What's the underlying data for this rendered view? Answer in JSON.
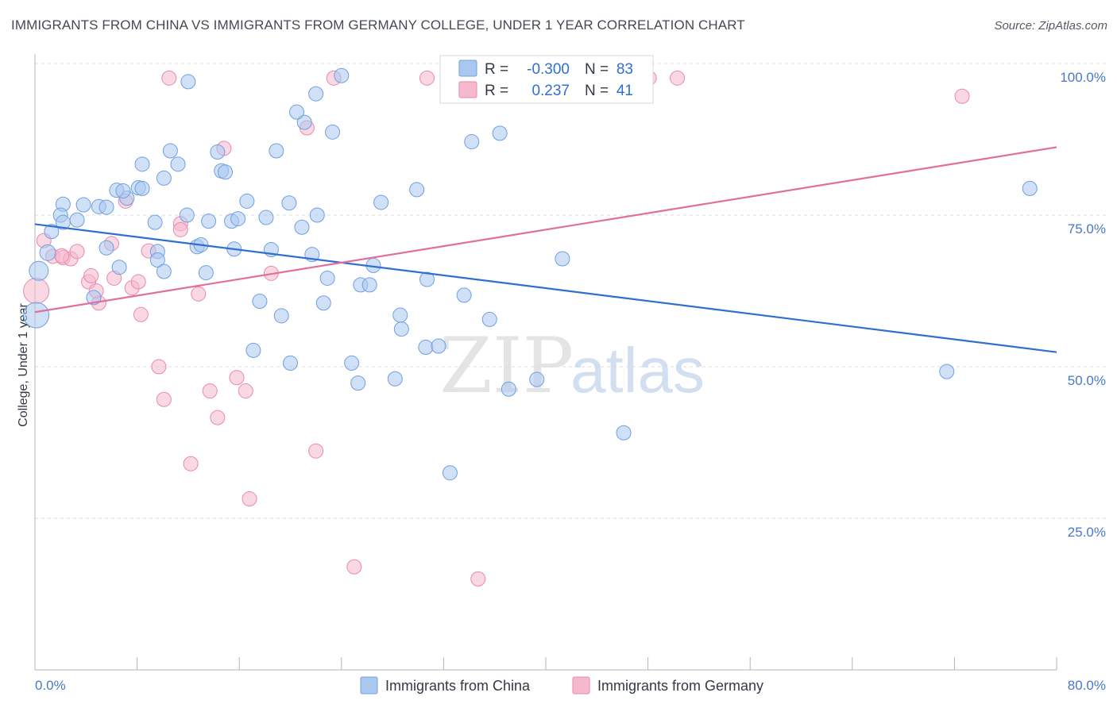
{
  "header": {
    "title": "IMMIGRANTS FROM CHINA VS IMMIGRANTS FROM GERMANY COLLEGE, UNDER 1 YEAR CORRELATION CHART",
    "source": "Source: ZipAtlas.com"
  },
  "watermark": {
    "zip": "ZIP",
    "atlas": "atlas"
  },
  "stats": {
    "china": {
      "r_label": "R = ",
      "r_value": "-0.300",
      "n_label": "N = ",
      "n_value": "83"
    },
    "germany": {
      "r_label": "R = ",
      "r_value": "0.237",
      "n_label": "N = ",
      "n_value": "41"
    }
  },
  "legend": {
    "china": "Immigrants from China",
    "germany": "Immigrants from Germany"
  },
  "colors": {
    "china_fill": "#a9c8f0",
    "china_stroke": "#6f9fe0",
    "china_line": "#2f6fd0",
    "germany_fill": "#f5b8cc",
    "germany_stroke": "#e88aa8",
    "germany_line": "#e0709a",
    "tick_text": "#4a78c8",
    "grid": "#dcdcdc"
  },
  "chart_data": {
    "type": "scatter",
    "title": "IMMIGRANTS FROM CHINA VS IMMIGRANTS FROM GERMANY COLLEGE, UNDER 1 YEAR CORRELATION CHART",
    "xlabel": "",
    "ylabel": "College, Under 1 year",
    "xlim": [
      0,
      80
    ],
    "ylim": [
      0,
      105
    ],
    "x_ticks": [
      "0.0%",
      "80.0%"
    ],
    "y_ticks": [
      {
        "value": 100,
        "label": "100.0%"
      },
      {
        "value": 75,
        "label": "75.0%"
      },
      {
        "value": 50,
        "label": "50.0%"
      },
      {
        "value": 25,
        "label": "25.0%"
      }
    ],
    "grid": true,
    "legend_position": "bottom-center",
    "series": [
      {
        "name": "Immigrants from China",
        "trend": {
          "x": [
            0,
            80
          ],
          "y": [
            73.5,
            52.4
          ]
        },
        "points": [
          [
            0.1,
            58.5,
            30
          ],
          [
            0.3,
            65.8,
            22
          ],
          [
            1.0,
            68.8,
            18
          ],
          [
            1.3,
            72.3,
            16
          ],
          [
            2.2,
            76.8,
            16
          ],
          [
            2.0,
            75.0,
            16
          ],
          [
            2.2,
            73.8,
            16
          ],
          [
            3.3,
            74.2,
            16
          ],
          [
            3.8,
            76.7,
            16
          ],
          [
            5.0,
            76.4,
            16
          ],
          [
            5.6,
            76.3,
            16
          ],
          [
            5.6,
            69.6,
            16
          ],
          [
            4.6,
            61.4,
            16
          ],
          [
            6.6,
            66.4,
            16
          ],
          [
            7.2,
            77.8,
            16
          ],
          [
            6.4,
            79.1,
            16
          ],
          [
            6.9,
            79.0,
            16
          ],
          [
            8.1,
            79.5,
            16
          ],
          [
            8.4,
            79.4,
            16
          ],
          [
            8.4,
            83.4,
            16
          ],
          [
            9.4,
            73.8,
            16
          ],
          [
            9.6,
            69.0,
            16
          ],
          [
            9.6,
            67.6,
            16
          ],
          [
            10.1,
            81.1,
            16
          ],
          [
            10.1,
            65.7,
            16
          ],
          [
            10.6,
            85.6,
            16
          ],
          [
            11.2,
            83.4,
            16
          ],
          [
            11.9,
            75.0,
            16
          ],
          [
            12.7,
            69.8,
            16
          ],
          [
            13.0,
            70.1,
            16
          ],
          [
            13.4,
            65.5,
            16
          ],
          [
            13.6,
            74.0,
            16
          ],
          [
            14.3,
            85.4,
            16
          ],
          [
            14.6,
            82.3,
            16
          ],
          [
            14.9,
            82.1,
            16
          ],
          [
            15.4,
            74.0,
            16
          ],
          [
            15.9,
            74.4,
            16
          ],
          [
            16.6,
            77.3,
            16
          ],
          [
            15.6,
            69.4,
            16
          ],
          [
            18.1,
            74.6,
            16
          ],
          [
            18.5,
            69.3,
            16
          ],
          [
            17.6,
            60.8,
            16
          ],
          [
            17.1,
            52.7,
            16
          ],
          [
            18.9,
            85.6,
            16
          ],
          [
            19.3,
            58.4,
            16
          ],
          [
            19.9,
            77.0,
            16
          ],
          [
            20.0,
            50.6,
            16
          ],
          [
            20.9,
            73.0,
            16
          ],
          [
            21.1,
            90.3,
            16
          ],
          [
            21.7,
            68.5,
            16
          ],
          [
            22.1,
            75.0,
            16
          ],
          [
            22.6,
            60.5,
            16
          ],
          [
            22.9,
            64.6,
            16
          ],
          [
            23.3,
            88.7,
            16
          ],
          [
            24.8,
            50.6,
            16
          ],
          [
            25.3,
            47.3,
            16
          ],
          [
            25.5,
            63.5,
            16
          ],
          [
            26.5,
            66.7,
            16
          ],
          [
            26.2,
            63.5,
            16
          ],
          [
            27.1,
            77.1,
            16
          ],
          [
            28.2,
            48.0,
            16
          ],
          [
            28.6,
            58.5,
            16
          ],
          [
            28.7,
            56.2,
            16
          ],
          [
            29.9,
            79.2,
            16
          ],
          [
            30.7,
            64.4,
            16
          ],
          [
            30.6,
            53.2,
            16
          ],
          [
            31.6,
            53.4,
            16
          ],
          [
            32.5,
            32.5,
            16
          ],
          [
            33.6,
            61.8,
            16
          ],
          [
            34.2,
            87.1,
            16
          ],
          [
            35.6,
            57.8,
            16
          ],
          [
            36.4,
            88.5,
            16
          ],
          [
            37.1,
            46.3,
            16
          ],
          [
            39.3,
            47.9,
            16
          ],
          [
            41.3,
            67.8,
            16
          ],
          [
            46.1,
            39.1,
            16
          ],
          [
            71.4,
            49.2,
            16
          ],
          [
            77.9,
            79.4,
            16
          ],
          [
            35.3,
            95.8,
            16
          ],
          [
            22.0,
            95.0,
            16
          ],
          [
            24.0,
            98.0,
            16
          ],
          [
            12.0,
            97.0,
            16
          ],
          [
            20.5,
            92.0,
            16
          ]
        ]
      },
      {
        "name": "Immigrants from Germany",
        "trend": {
          "x": [
            0,
            80
          ],
          "y": [
            59.0,
            86.2
          ]
        },
        "points": [
          [
            0.1,
            62.5,
            30
          ],
          [
            0.7,
            70.8,
            16
          ],
          [
            1.4,
            68.2,
            16
          ],
          [
            2.2,
            68.0,
            16
          ],
          [
            2.8,
            67.8,
            16
          ],
          [
            3.3,
            69.0,
            16
          ],
          [
            4.2,
            64.0,
            16
          ],
          [
            4.4,
            65.0,
            16
          ],
          [
            5.0,
            60.5,
            16
          ],
          [
            6.0,
            70.3,
            16
          ],
          [
            6.2,
            64.6,
            16
          ],
          [
            7.1,
            77.3,
            16
          ],
          [
            7.6,
            63.0,
            16
          ],
          [
            8.1,
            64.0,
            16
          ],
          [
            8.3,
            58.6,
            16
          ],
          [
            8.9,
            69.1,
            16
          ],
          [
            9.7,
            50.0,
            16
          ],
          [
            10.1,
            44.6,
            16
          ],
          [
            10.5,
            97.6,
            16
          ],
          [
            11.4,
            73.6,
            16
          ],
          [
            11.4,
            72.6,
            16
          ],
          [
            12.2,
            34.0,
            16
          ],
          [
            12.8,
            62.0,
            16
          ],
          [
            13.7,
            46.0,
            16
          ],
          [
            14.3,
            41.6,
            16
          ],
          [
            14.8,
            86.0,
            16
          ],
          [
            15.8,
            48.2,
            16
          ],
          [
            16.5,
            46.0,
            16
          ],
          [
            16.8,
            28.2,
            16
          ],
          [
            18.5,
            65.4,
            16
          ],
          [
            21.3,
            89.4,
            16
          ],
          [
            22.0,
            36.1,
            16
          ],
          [
            23.4,
            97.6,
            16
          ],
          [
            25.0,
            17.0,
            16
          ],
          [
            30.7,
            97.6,
            16
          ],
          [
            34.7,
            15.0,
            16
          ],
          [
            48.1,
            97.6,
            16
          ],
          [
            50.3,
            97.6,
            16
          ],
          [
            72.6,
            94.6,
            16
          ],
          [
            4.8,
            62.5,
            16
          ],
          [
            2.1,
            68.3,
            16
          ]
        ]
      }
    ]
  }
}
